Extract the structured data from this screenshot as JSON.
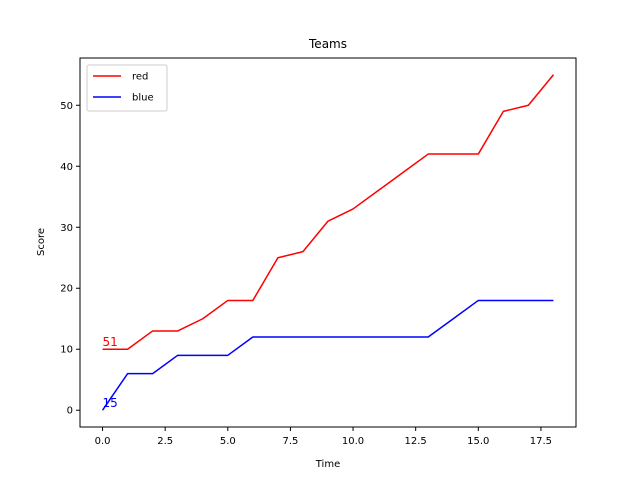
{
  "chart_data": {
    "type": "line",
    "title": "Teams",
    "xlabel": "Time",
    "ylabel": "Score",
    "xlim": [
      -0.9,
      18.9
    ],
    "ylim": [
      -2.75,
      57.75
    ],
    "xticks": [
      0,
      2.5,
      5,
      7.5,
      10,
      12.5,
      15,
      17.5
    ],
    "xtick_labels": [
      "0.0",
      "2.5",
      "5.0",
      "7.5",
      "10.0",
      "12.5",
      "15.0",
      "17.5"
    ],
    "yticks": [
      0,
      10,
      20,
      30,
      40,
      50
    ],
    "ytick_labels": [
      "0",
      "10",
      "20",
      "30",
      "40",
      "50"
    ],
    "grid": false,
    "legend_position": "top-left",
    "x": [
      0,
      1,
      2,
      3,
      4,
      5,
      6,
      7,
      8,
      9,
      10,
      11,
      12,
      13,
      14,
      15,
      16,
      17,
      18
    ],
    "series": [
      {
        "name": "red",
        "color": "#ff0000",
        "values": [
          10,
          10,
          13,
          13,
          15,
          18,
          18,
          25,
          26,
          31,
          33,
          36,
          39,
          42,
          42,
          42,
          49,
          50,
          55
        ]
      },
      {
        "name": "blue",
        "color": "#0000ff",
        "values": [
          0,
          6,
          6,
          9,
          9,
          9,
          12,
          12,
          12,
          12,
          12,
          12,
          12,
          12,
          15,
          18,
          18,
          18,
          18
        ]
      }
    ],
    "annotations": [
      {
        "text": "51",
        "x": 0,
        "y": 10,
        "color": "#ff0000"
      },
      {
        "text": "15",
        "x": 0,
        "y": 0,
        "color": "#0000ff"
      }
    ]
  }
}
